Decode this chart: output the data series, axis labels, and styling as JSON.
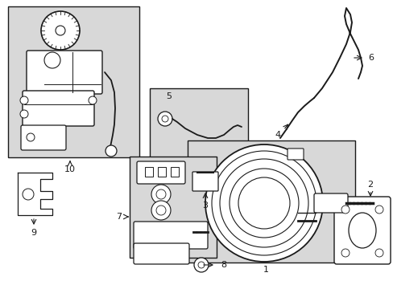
{
  "bg_color": "#ffffff",
  "line_color": "#1a1a1a",
  "shaded_color": "#d8d8d8",
  "fig_width": 4.89,
  "fig_height": 3.6,
  "dpi": 100
}
